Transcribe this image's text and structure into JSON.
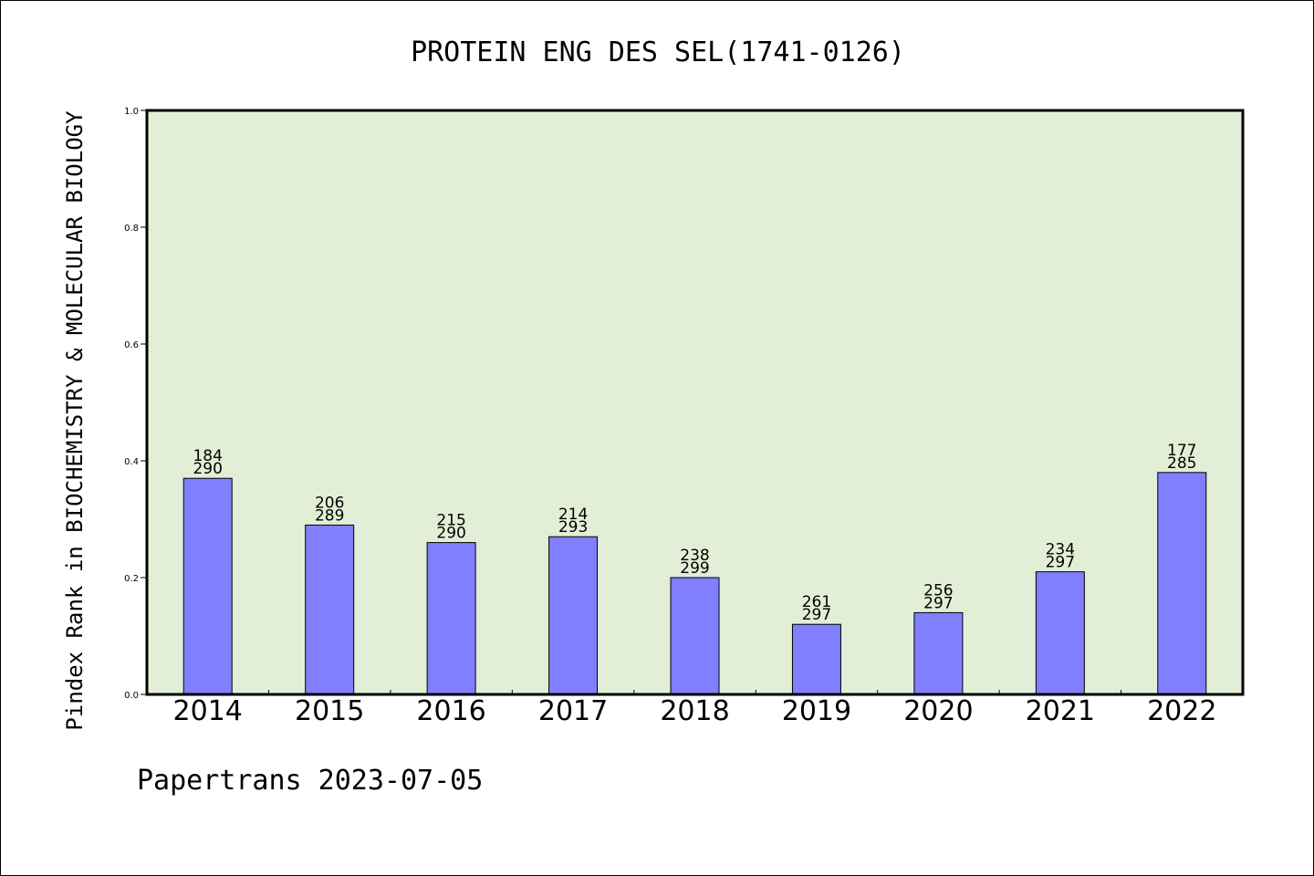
{
  "chart_data": {
    "type": "bar",
    "title": "PROTEIN ENG DES SEL(1741-0126)",
    "ylabel": "Pindex Rank in BIOCHEMISTRY & MOLECULAR BIOLOGY",
    "xlabel": "",
    "categories": [
      "2014",
      "2015",
      "2016",
      "2017",
      "2018",
      "2019",
      "2020",
      "2021",
      "2022"
    ],
    "values": [
      0.37,
      0.29,
      0.26,
      0.27,
      0.2,
      0.12,
      0.14,
      0.21,
      0.38
    ],
    "rank": [
      "184",
      "206",
      "215",
      "214",
      "238",
      "261",
      "256",
      "234",
      "177"
    ],
    "total": [
      "290",
      "289",
      "290",
      "293",
      "299",
      "297",
      "297",
      "297",
      "285"
    ],
    "ylim": [
      0,
      1.0
    ],
    "yticks": [
      "0.0",
      "0.2",
      "0.4",
      "0.6",
      "0.8",
      "1.0"
    ],
    "grid": false,
    "colors": {
      "bar_fill": "#8080ff",
      "plot_background": "#e2efd6",
      "axis": "#000000"
    }
  },
  "footer": {
    "text": "Papertrans 2023-07-05"
  }
}
